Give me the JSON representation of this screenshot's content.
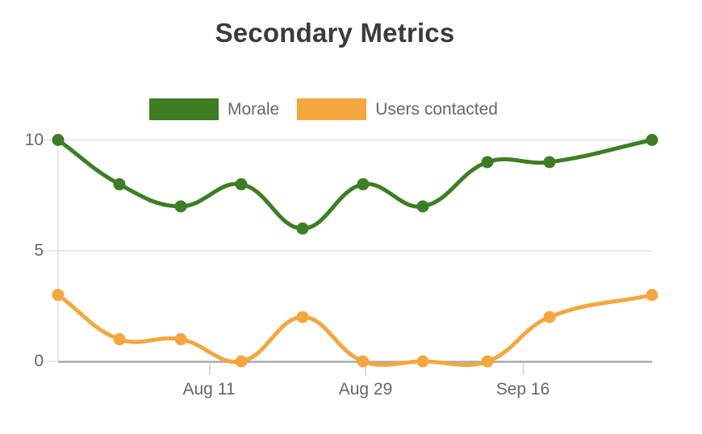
{
  "chart_data": {
    "type": "line",
    "title": "Secondary Metrics",
    "legend_position": "top",
    "grid": "horizontal-only",
    "ylim": [
      0,
      10
    ],
    "y_ticks": [
      0,
      5,
      10
    ],
    "x_tick_labels": [
      "Aug 11",
      "Aug 29",
      "Sep 16"
    ],
    "x_values_estimated": [
      "Jul 25",
      "Aug 1",
      "Aug 8",
      "Aug 15",
      "Aug 22",
      "Aug 29",
      "Sep 5",
      "Sep 12",
      "Sep 19",
      "Oct 1"
    ],
    "series": [
      {
        "name": "Morale",
        "color": "#3d7d23",
        "values": [
          10,
          8,
          7,
          8,
          6,
          8,
          7,
          9,
          9,
          10
        ]
      },
      {
        "name": "Users contacted",
        "color": "#f3a73e",
        "values": [
          3,
          1,
          1,
          0,
          2,
          0,
          0,
          0,
          2,
          3
        ]
      }
    ]
  }
}
